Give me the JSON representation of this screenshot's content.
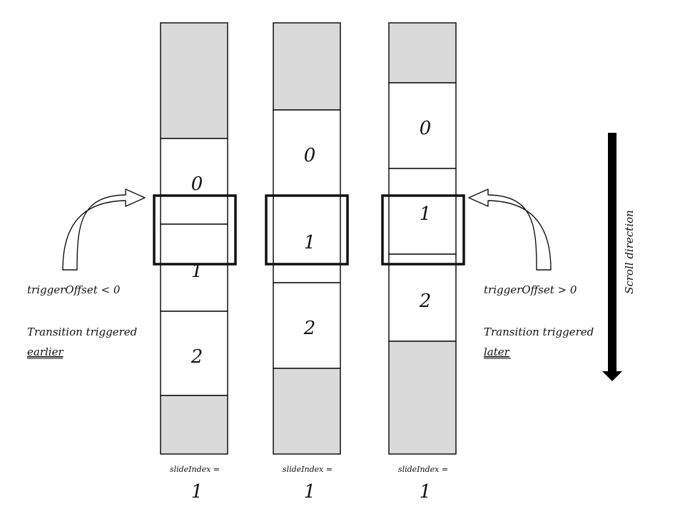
{
  "columns": [
    {
      "slides": [
        "0",
        "1",
        "2"
      ],
      "index_label": "slideIndex =",
      "index_value": "1"
    },
    {
      "slides": [
        "0",
        "1",
        "2"
      ],
      "index_label": "slideIndex =",
      "index_value": "1"
    },
    {
      "slides": [
        "0",
        "1",
        "2"
      ],
      "index_label": "slideIndex =",
      "index_value": "1"
    }
  ],
  "left_note": {
    "offset": "triggerOffset < 0",
    "line1": "Transition triggered",
    "emphasis": "earlier"
  },
  "right_note": {
    "offset": "triggerOffset > 0",
    "line1": "Transition triggered",
    "emphasis": "later"
  },
  "scroll_label": "Scroll direction",
  "colors": {
    "stroke": "#111111",
    "empty_region": "#dadada",
    "slide": "#ffffff",
    "arrow": "#000000"
  }
}
